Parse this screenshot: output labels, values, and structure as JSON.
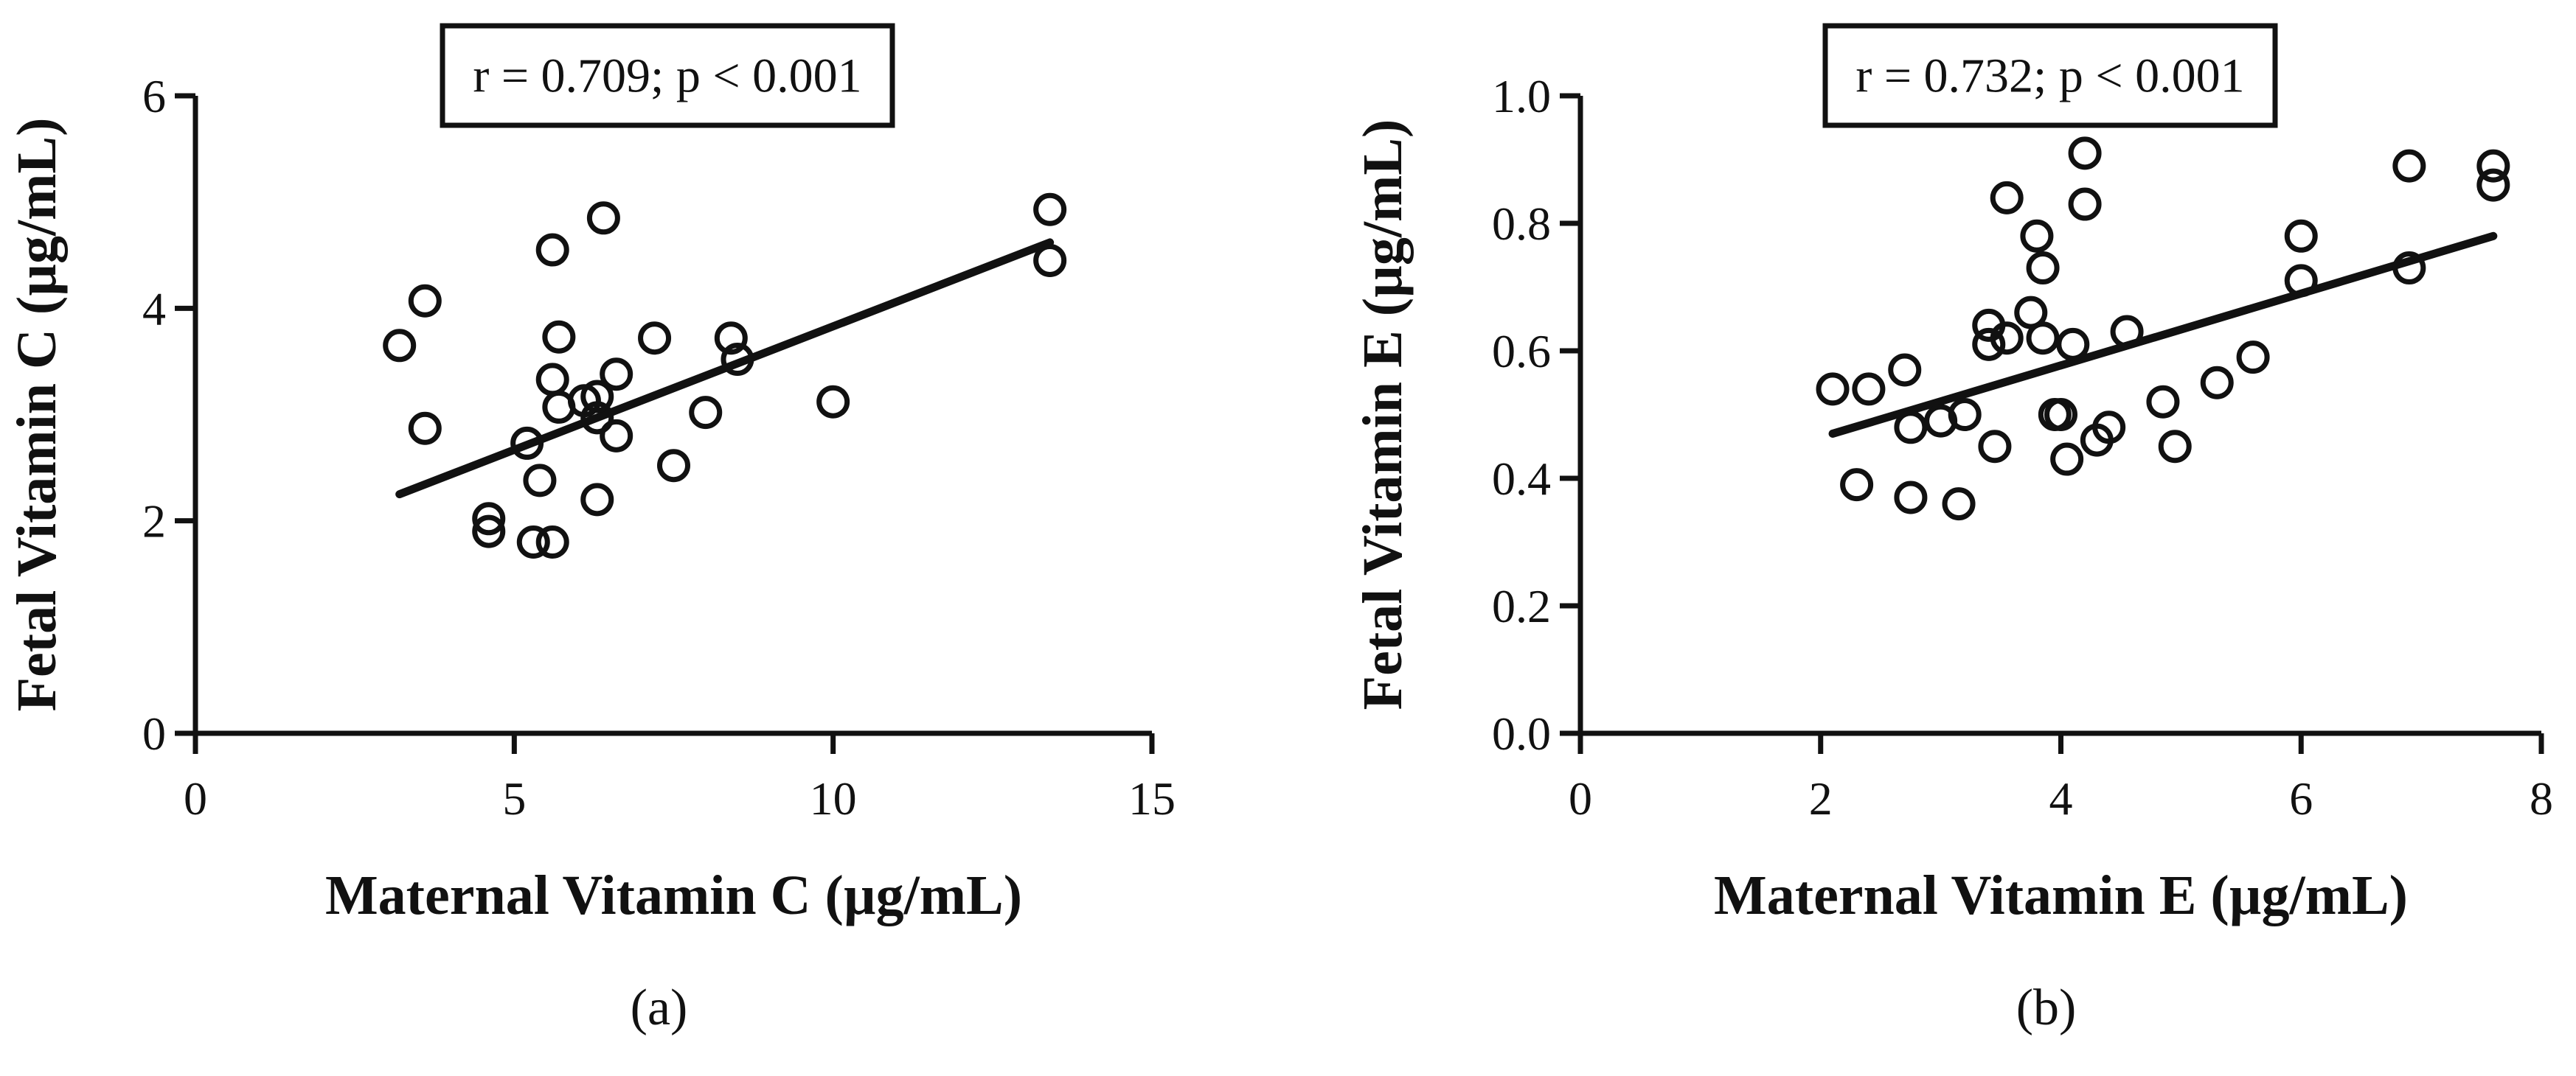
{
  "chart_data": [
    {
      "type": "scatter",
      "panel_label": "(a)",
      "xlabel": "Maternal Vitamin C (µg/mL)",
      "ylabel": "Fetal Vitamin C (µg/mL)",
      "annotation": "r = 0.709; p < 0.001",
      "xlim": [
        0,
        15
      ],
      "ylim": [
        0,
        6
      ],
      "xticks": [
        0,
        5,
        10,
        15
      ],
      "yticks": [
        0,
        2,
        4,
        6
      ],
      "xtick_labels": [
        "0",
        "5",
        "10",
        "15"
      ],
      "ytick_labels": [
        "0",
        "2",
        "4",
        "6"
      ],
      "points": [
        {
          "x": 3.2,
          "y": 3.65
        },
        {
          "x": 3.6,
          "y": 4.07
        },
        {
          "x": 3.6,
          "y": 2.87
        },
        {
          "x": 4.6,
          "y": 2.02
        },
        {
          "x": 4.6,
          "y": 1.9
        },
        {
          "x": 5.2,
          "y": 2.73
        },
        {
          "x": 5.3,
          "y": 1.8
        },
        {
          "x": 5.4,
          "y": 2.38
        },
        {
          "x": 5.6,
          "y": 4.55
        },
        {
          "x": 5.6,
          "y": 3.33
        },
        {
          "x": 5.6,
          "y": 1.8
        },
        {
          "x": 5.7,
          "y": 3.73
        },
        {
          "x": 5.7,
          "y": 3.07
        },
        {
          "x": 6.1,
          "y": 3.13
        },
        {
          "x": 6.3,
          "y": 3.17
        },
        {
          "x": 6.3,
          "y": 2.97
        },
        {
          "x": 6.3,
          "y": 2.2
        },
        {
          "x": 6.4,
          "y": 4.85
        },
        {
          "x": 6.6,
          "y": 3.38
        },
        {
          "x": 6.6,
          "y": 2.8
        },
        {
          "x": 7.2,
          "y": 3.72
        },
        {
          "x": 7.5,
          "y": 2.52
        },
        {
          "x": 8.0,
          "y": 3.02
        },
        {
          "x": 8.4,
          "y": 3.72
        },
        {
          "x": 8.5,
          "y": 3.52
        },
        {
          "x": 10.0,
          "y": 3.12
        },
        {
          "x": 13.4,
          "y": 4.93
        },
        {
          "x": 13.4,
          "y": 4.45
        }
      ],
      "regression": {
        "x": [
          3.2,
          13.4
        ],
        "y": [
          2.25,
          4.62
        ]
      }
    },
    {
      "type": "scatter",
      "panel_label": "(b)",
      "xlabel": "Maternal Vitamin E (µg/mL)",
      "ylabel": "Fetal Vitamin E (µg/mL)",
      "annotation": "r = 0.732; p < 0.001",
      "xlim": [
        0,
        8
      ],
      "ylim": [
        0,
        1
      ],
      "xticks": [
        0,
        2,
        4,
        6,
        8
      ],
      "yticks": [
        0,
        0.2,
        0.4,
        0.6,
        0.8,
        1
      ],
      "xtick_labels": [
        "0",
        "2",
        "4",
        "6",
        "8"
      ],
      "ytick_labels": [
        "0.0",
        "0.2",
        "0.4",
        "0.6",
        "0.8",
        "1.0"
      ],
      "points": [
        {
          "x": 2.1,
          "y": 0.54
        },
        {
          "x": 2.3,
          "y": 0.39
        },
        {
          "x": 2.4,
          "y": 0.54
        },
        {
          "x": 2.7,
          "y": 0.57
        },
        {
          "x": 2.75,
          "y": 0.48
        },
        {
          "x": 2.75,
          "y": 0.37
        },
        {
          "x": 3.0,
          "y": 0.49
        },
        {
          "x": 3.15,
          "y": 0.36
        },
        {
          "x": 3.2,
          "y": 0.5
        },
        {
          "x": 3.4,
          "y": 0.64
        },
        {
          "x": 3.4,
          "y": 0.61
        },
        {
          "x": 3.45,
          "y": 0.45
        },
        {
          "x": 3.55,
          "y": 0.84
        },
        {
          "x": 3.55,
          "y": 0.62
        },
        {
          "x": 3.75,
          "y": 0.66
        },
        {
          "x": 3.8,
          "y": 0.78
        },
        {
          "x": 3.85,
          "y": 0.73
        },
        {
          "x": 3.85,
          "y": 0.62
        },
        {
          "x": 3.95,
          "y": 0.5
        },
        {
          "x": 4.0,
          "y": 0.5
        },
        {
          "x": 4.05,
          "y": 0.43
        },
        {
          "x": 4.1,
          "y": 0.61
        },
        {
          "x": 4.2,
          "y": 0.91
        },
        {
          "x": 4.2,
          "y": 0.83
        },
        {
          "x": 4.3,
          "y": 0.46
        },
        {
          "x": 4.4,
          "y": 0.48
        },
        {
          "x": 4.55,
          "y": 0.63
        },
        {
          "x": 4.85,
          "y": 0.52
        },
        {
          "x": 4.95,
          "y": 0.45
        },
        {
          "x": 5.3,
          "y": 0.55
        },
        {
          "x": 5.6,
          "y": 0.59
        },
        {
          "x": 6.0,
          "y": 0.78
        },
        {
          "x": 6.0,
          "y": 0.71
        },
        {
          "x": 6.9,
          "y": 0.89
        },
        {
          "x": 6.9,
          "y": 0.73
        },
        {
          "x": 7.6,
          "y": 0.89
        },
        {
          "x": 7.6,
          "y": 0.86
        }
      ],
      "regression": {
        "x": [
          2.1,
          7.6
        ],
        "y": [
          0.47,
          0.78
        ]
      }
    }
  ]
}
